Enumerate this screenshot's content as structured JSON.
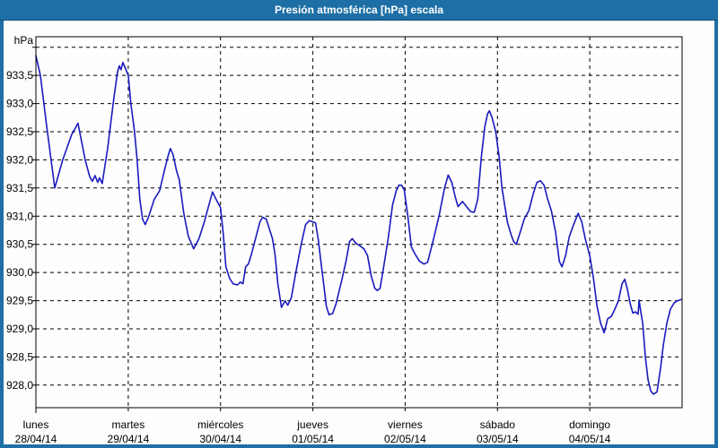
{
  "window": {
    "title": "Presión atmosférica [hPa] escala"
  },
  "colors": {
    "frame": "#1d6fa5",
    "frame_edge": "#11507c",
    "title_text": "#ffffff",
    "content_bg": "#fcfdfc",
    "plot_bg": "#fdfefd",
    "grid": "#000000",
    "text": "#000000",
    "line": "#1a1abe"
  },
  "chart_data": {
    "type": "line",
    "title": "Presión atmosférica [hPa] escala",
    "unit_label": "hPa",
    "ylabel": "hPa",
    "ylim": [
      927.6,
      934.2
    ],
    "grid": "dashed",
    "legend": "none",
    "y_gridlines": [
      934.0,
      933.5,
      933.0,
      932.5,
      932.0,
      931.5,
      931.0,
      930.5,
      930.0,
      929.5,
      929.0,
      928.5,
      928.0
    ],
    "y_ticks": [
      {
        "value": 933.5,
        "label": "933,5"
      },
      {
        "value": 933.0,
        "label": "933,0"
      },
      {
        "value": 932.5,
        "label": "932,5"
      },
      {
        "value": 932.0,
        "label": "932,0"
      },
      {
        "value": 931.5,
        "label": "931,5"
      },
      {
        "value": 931.0,
        "label": "931,0"
      },
      {
        "value": 930.5,
        "label": "930,5"
      },
      {
        "value": 930.0,
        "label": "930,0"
      },
      {
        "value": 929.5,
        "label": "929,5"
      },
      {
        "value": 929.0,
        "label": "929,0"
      },
      {
        "value": 928.5,
        "label": "928,5"
      },
      {
        "value": 928.0,
        "label": "928,0"
      }
    ],
    "x_days": [
      {
        "name": "lunes",
        "date": "28/04/14"
      },
      {
        "name": "martes",
        "date": "29/04/14"
      },
      {
        "name": "miércoles",
        "date": "30/04/14"
      },
      {
        "name": "jueves",
        "date": "01/05/14"
      },
      {
        "name": "viernes",
        "date": "02/05/14"
      },
      {
        "name": "sábado",
        "date": "03/05/14"
      },
      {
        "name": "domingo",
        "date": "04/05/14"
      }
    ],
    "series": [
      {
        "name": "Presión atmosférica [hPa]",
        "points": [
          [
            0.0,
            933.85
          ],
          [
            0.049,
            933.5
          ],
          [
            0.117,
            932.6
          ],
          [
            0.204,
            931.5
          ],
          [
            0.291,
            932.0
          ],
          [
            0.388,
            932.45
          ],
          [
            0.456,
            932.65
          ],
          [
            0.534,
            932.0
          ],
          [
            0.583,
            931.7
          ],
          [
            0.612,
            931.62
          ],
          [
            0.641,
            931.72
          ],
          [
            0.67,
            931.6
          ],
          [
            0.689,
            931.68
          ],
          [
            0.718,
            931.58
          ],
          [
            0.777,
            932.2
          ],
          [
            0.845,
            933.1
          ],
          [
            0.883,
            933.55
          ],
          [
            0.903,
            933.67
          ],
          [
            0.922,
            933.6
          ],
          [
            0.942,
            933.73
          ],
          [
            0.971,
            933.62
          ],
          [
            1.0,
            933.5
          ],
          [
            1.029,
            933.0
          ],
          [
            1.068,
            932.5
          ],
          [
            1.097,
            932.0
          ],
          [
            1.126,
            931.3
          ],
          [
            1.155,
            930.95
          ],
          [
            1.184,
            930.85
          ],
          [
            1.223,
            931.0
          ],
          [
            1.282,
            931.3
          ],
          [
            1.34,
            931.45
          ],
          [
            1.398,
            931.85
          ],
          [
            1.437,
            932.1
          ],
          [
            1.456,
            932.2
          ],
          [
            1.485,
            932.1
          ],
          [
            1.524,
            931.8
          ],
          [
            1.553,
            931.65
          ],
          [
            1.602,
            931.05
          ],
          [
            1.65,
            930.65
          ],
          [
            1.709,
            930.42
          ],
          [
            1.767,
            930.6
          ],
          [
            1.825,
            930.9
          ],
          [
            1.874,
            931.2
          ],
          [
            1.913,
            931.43
          ],
          [
            1.951,
            931.3
          ],
          [
            2.0,
            931.15
          ],
          [
            2.029,
            930.7
          ],
          [
            2.058,
            930.1
          ],
          [
            2.097,
            929.9
          ],
          [
            2.136,
            929.8
          ],
          [
            2.184,
            929.78
          ],
          [
            2.214,
            929.83
          ],
          [
            2.243,
            929.8
          ],
          [
            2.272,
            930.1
          ],
          [
            2.301,
            930.15
          ],
          [
            2.33,
            930.3
          ],
          [
            2.379,
            930.6
          ],
          [
            2.427,
            930.9
          ],
          [
            2.456,
            930.98
          ],
          [
            2.495,
            930.95
          ],
          [
            2.534,
            930.75
          ],
          [
            2.563,
            930.6
          ],
          [
            2.592,
            930.3
          ],
          [
            2.621,
            929.8
          ],
          [
            2.66,
            929.38
          ],
          [
            2.699,
            929.5
          ],
          [
            2.728,
            929.42
          ],
          [
            2.767,
            929.55
          ],
          [
            2.816,
            930.0
          ],
          [
            2.874,
            930.5
          ],
          [
            2.922,
            930.85
          ],
          [
            2.961,
            930.92
          ],
          [
            3.0,
            930.9
          ],
          [
            3.029,
            930.88
          ],
          [
            3.058,
            930.6
          ],
          [
            3.087,
            930.2
          ],
          [
            3.117,
            929.8
          ],
          [
            3.146,
            929.4
          ],
          [
            3.175,
            929.25
          ],
          [
            3.214,
            929.27
          ],
          [
            3.252,
            929.45
          ],
          [
            3.311,
            929.85
          ],
          [
            3.359,
            930.2
          ],
          [
            3.398,
            930.55
          ],
          [
            3.427,
            930.6
          ],
          [
            3.466,
            930.52
          ],
          [
            3.505,
            930.48
          ],
          [
            3.553,
            930.42
          ],
          [
            3.592,
            930.3
          ],
          [
            3.631,
            929.95
          ],
          [
            3.67,
            929.72
          ],
          [
            3.699,
            929.68
          ],
          [
            3.728,
            929.72
          ],
          [
            3.767,
            930.1
          ],
          [
            3.816,
            930.6
          ],
          [
            3.864,
            931.2
          ],
          [
            3.903,
            931.45
          ],
          [
            3.932,
            931.55
          ],
          [
            3.961,
            931.55
          ],
          [
            3.99,
            931.47
          ],
          [
            4.029,
            931.0
          ],
          [
            4.068,
            930.45
          ],
          [
            4.107,
            930.33
          ],
          [
            4.155,
            930.2
          ],
          [
            4.204,
            930.15
          ],
          [
            4.243,
            930.18
          ],
          [
            4.301,
            930.55
          ],
          [
            4.369,
            931.02
          ],
          [
            4.427,
            931.5
          ],
          [
            4.466,
            931.73
          ],
          [
            4.505,
            931.6
          ],
          [
            4.544,
            931.33
          ],
          [
            4.573,
            931.17
          ],
          [
            4.621,
            931.26
          ],
          [
            4.66,
            931.18
          ],
          [
            4.709,
            931.08
          ],
          [
            4.748,
            931.07
          ],
          [
            4.786,
            931.3
          ],
          [
            4.825,
            932.05
          ],
          [
            4.864,
            932.6
          ],
          [
            4.893,
            932.82
          ],
          [
            4.913,
            932.87
          ],
          [
            4.942,
            932.75
          ],
          [
            4.981,
            932.5
          ],
          [
            5.019,
            932.05
          ],
          [
            5.049,
            931.5
          ],
          [
            5.078,
            931.2
          ],
          [
            5.107,
            930.9
          ],
          [
            5.146,
            930.68
          ],
          [
            5.175,
            930.55
          ],
          [
            5.204,
            930.5
          ],
          [
            5.243,
            930.7
          ],
          [
            5.291,
            930.95
          ],
          [
            5.34,
            931.1
          ],
          [
            5.388,
            931.4
          ],
          [
            5.427,
            931.6
          ],
          [
            5.466,
            931.63
          ],
          [
            5.505,
            931.55
          ],
          [
            5.544,
            931.3
          ],
          [
            5.583,
            931.1
          ],
          [
            5.631,
            930.7
          ],
          [
            5.67,
            930.2
          ],
          [
            5.699,
            930.1
          ],
          [
            5.738,
            930.3
          ],
          [
            5.777,
            930.63
          ],
          [
            5.825,
            930.85
          ],
          [
            5.874,
            931.05
          ],
          [
            5.913,
            930.9
          ],
          [
            5.951,
            930.6
          ],
          [
            6.0,
            930.3
          ],
          [
            6.039,
            929.9
          ],
          [
            6.078,
            929.4
          ],
          [
            6.117,
            929.1
          ],
          [
            6.155,
            928.93
          ],
          [
            6.194,
            929.18
          ],
          [
            6.233,
            929.22
          ],
          [
            6.272,
            929.35
          ],
          [
            6.311,
            929.5
          ],
          [
            6.35,
            929.8
          ],
          [
            6.379,
            929.88
          ],
          [
            6.408,
            929.7
          ],
          [
            6.437,
            929.45
          ],
          [
            6.466,
            929.28
          ],
          [
            6.495,
            929.3
          ],
          [
            6.524,
            929.26
          ],
          [
            6.534,
            929.51
          ],
          [
            6.553,
            929.3
          ],
          [
            6.573,
            929.1
          ],
          [
            6.602,
            928.5
          ],
          [
            6.631,
            928.1
          ],
          [
            6.66,
            927.9
          ],
          [
            6.689,
            927.84
          ],
          [
            6.728,
            927.88
          ],
          [
            6.767,
            928.3
          ],
          [
            6.796,
            928.7
          ],
          [
            6.835,
            929.1
          ],
          [
            6.874,
            929.35
          ],
          [
            6.913,
            929.46
          ],
          [
            6.951,
            929.5
          ],
          [
            6.99,
            929.52
          ]
        ]
      }
    ]
  }
}
